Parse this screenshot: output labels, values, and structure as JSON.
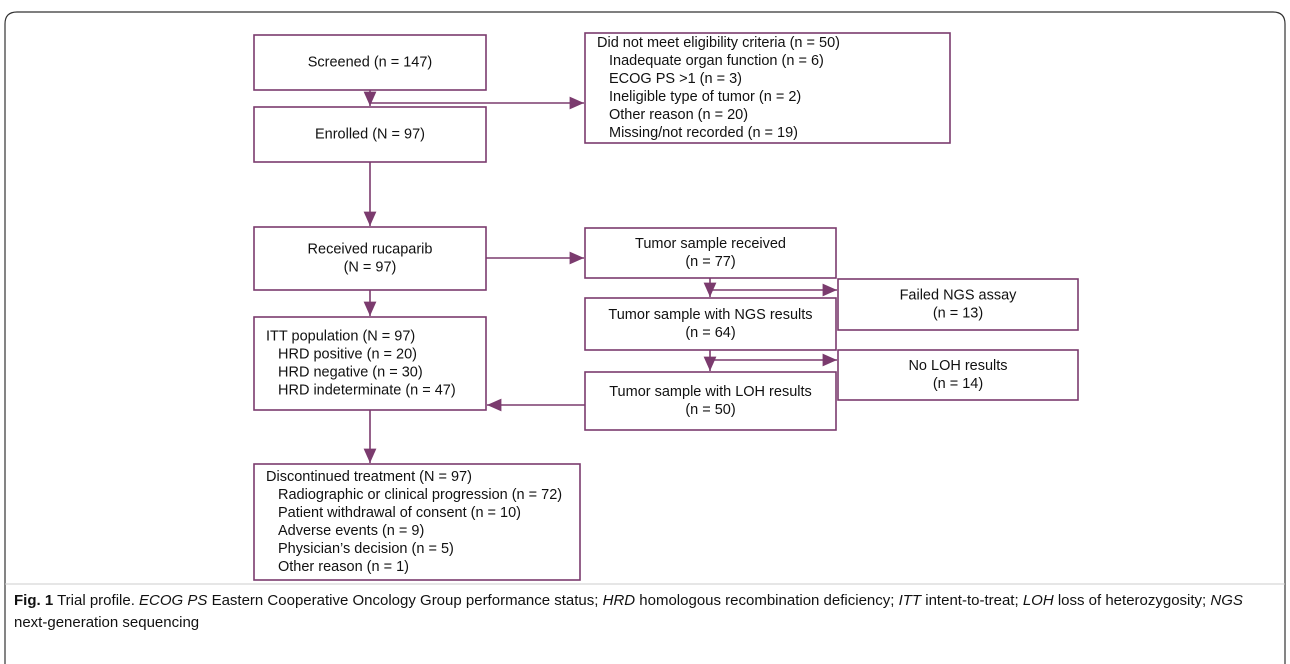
{
  "nodes": [
    {
      "lines": [
        "Screened (n = 147)"
      ]
    },
    {
      "lines": [
        "Did not meet eligibility criteria (n = 50)",
        "Inadequate organ function (n = 6)",
        "ECOG PS >1 (n = 3)",
        "Ineligible type of tumor (n = 2)",
        "Other reason (n = 20)",
        "Missing/not recorded (n = 19)"
      ]
    },
    {
      "lines": [
        "Enrolled (N = 97)"
      ]
    },
    {
      "lines": [
        "Received rucaparib",
        "(N = 97)"
      ]
    },
    {
      "lines": [
        "Tumor sample received",
        "(n = 77)"
      ]
    },
    {
      "lines": [
        "Failed NGS assay",
        "(n = 13)"
      ]
    },
    {
      "lines": [
        "Tumor sample with NGS results",
        "(n = 64)"
      ]
    },
    {
      "lines": [
        "No LOH results",
        "(n = 14)"
      ]
    },
    {
      "lines": [
        "Tumor sample with LOH results",
        "(n = 50)"
      ]
    },
    {
      "lines": [
        "ITT population (N = 97)",
        "HRD positive (n = 20)",
        "HRD negative (n = 30)",
        "HRD indeterminate (n = 47)"
      ]
    },
    {
      "lines": [
        "Discontinued treatment (N = 97)",
        "Radiographic or clinical progression (n = 72)",
        "Patient withdrawal of consent (n = 10)",
        "Adverse events (n = 9)",
        "Physician’s decision (n = 5)",
        "Other reason (n = 1)"
      ]
    }
  ],
  "caption": {
    "label": "Fig. 1",
    "text": " Trial profile. ",
    "terms": [
      {
        "abbr": "ECOG PS",
        "def": " Eastern Cooperative Oncology Group performance status; "
      },
      {
        "abbr": "HRD",
        "def": " homologous recombination deficiency; "
      },
      {
        "abbr": "ITT",
        "def": " intent-to-treat; "
      },
      {
        "abbr": "LOH",
        "def": " loss of heterozygosity; "
      },
      {
        "abbr": "NGS",
        "def": " next-generation sequencing"
      }
    ]
  }
}
